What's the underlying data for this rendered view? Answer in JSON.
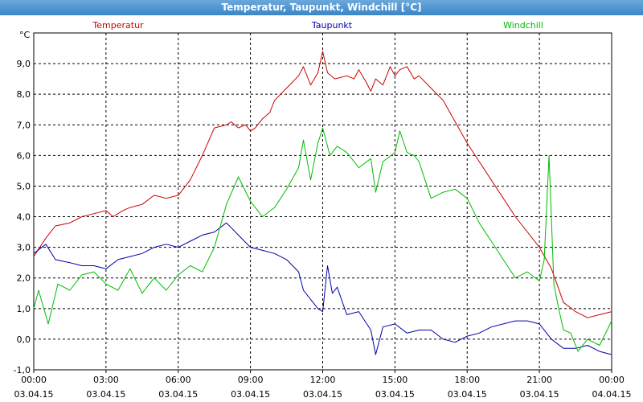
{
  "window": {
    "title": "Temperatur, Taupunkt, Windchill [°C]"
  },
  "colors": {
    "temperature": "#cc0000",
    "dewpoint": "#0000aa",
    "windchill": "#00bb00",
    "grid": "#000000"
  },
  "chart_data": {
    "type": "line",
    "title": "Temperatur, Taupunkt, Windchill [°C]",
    "ylabel": "°C",
    "ylim": [
      -1.0,
      10.0
    ],
    "xlim_hours": [
      0,
      24
    ],
    "y_ticks": [
      "-1,0",
      "0,0",
      "1,0",
      "2,0",
      "3,0",
      "4,0",
      "5,0",
      "6,0",
      "7,0",
      "8,0",
      "9,0"
    ],
    "x_ticks": [
      {
        "time": "00:00",
        "date": "03.04.15"
      },
      {
        "time": "03:00",
        "date": "03.04.15"
      },
      {
        "time": "06:00",
        "date": "03.04.15"
      },
      {
        "time": "09:00",
        "date": "03.04.15"
      },
      {
        "time": "12:00",
        "date": "03.04.15"
      },
      {
        "time": "15:00",
        "date": "03.04.15"
      },
      {
        "time": "18:00",
        "date": "03.04.15"
      },
      {
        "time": "21:00",
        "date": "03.04.15"
      },
      {
        "time": "00:00",
        "date": "04.04.15"
      }
    ],
    "grid": true,
    "legend": "top",
    "series": [
      {
        "name": "Temperatur",
        "color": "#cc0000",
        "x": [
          0,
          0.5,
          0.9,
          1.5,
          2,
          2.5,
          3,
          3.3,
          3.7,
          4,
          4.5,
          5,
          5.5,
          6,
          6.5,
          7,
          7.5,
          8,
          8.2,
          8.5,
          8.8,
          9,
          9.2,
          9.5,
          9.8,
          10,
          10.5,
          11,
          11.2,
          11.5,
          11.8,
          12,
          12.2,
          12.5,
          13,
          13.3,
          13.5,
          13.8,
          14,
          14.2,
          14.5,
          14.8,
          15,
          15.2,
          15.5,
          15.8,
          16,
          16.5,
          17,
          17.5,
          18,
          19,
          20,
          21,
          21.5,
          22,
          22.5,
          23,
          23.5,
          24
        ],
        "y": [
          2.7,
          3.3,
          3.7,
          3.8,
          4.0,
          4.1,
          4.2,
          4.0,
          4.2,
          4.3,
          4.4,
          4.7,
          4.6,
          4.7,
          5.2,
          6.0,
          6.9,
          7.0,
          7.1,
          6.9,
          7.0,
          6.8,
          6.9,
          7.2,
          7.4,
          7.8,
          8.2,
          8.6,
          8.9,
          8.3,
          8.7,
          9.4,
          8.7,
          8.5,
          8.6,
          8.5,
          8.8,
          8.4,
          8.1,
          8.5,
          8.3,
          8.9,
          8.6,
          8.8,
          8.9,
          8.5,
          8.6,
          8.2,
          7.8,
          7.1,
          6.4,
          5.2,
          4.0,
          3.0,
          2.3,
          1.2,
          0.9,
          0.7,
          0.8,
          0.9
        ]
      },
      {
        "name": "Taupunkt",
        "color": "#0000aa",
        "x": [
          0,
          0.5,
          0.9,
          1.5,
          2,
          2.5,
          3,
          3.5,
          4,
          4.5,
          5,
          5.5,
          6,
          6.5,
          7,
          7.5,
          8,
          8.5,
          9,
          9.5,
          10,
          10.5,
          11,
          11.2,
          11.5,
          11.8,
          12,
          12.2,
          12.4,
          12.6,
          13,
          13.5,
          14,
          14.2,
          14.5,
          15,
          15.5,
          16,
          16.5,
          17,
          17.5,
          18,
          18.5,
          19,
          19.5,
          20,
          20.5,
          21,
          21.5,
          22,
          22.5,
          23,
          23.5,
          24
        ],
        "y": [
          2.8,
          3.1,
          2.6,
          2.5,
          2.4,
          2.4,
          2.3,
          2.6,
          2.7,
          2.8,
          3.0,
          3.1,
          3.0,
          3.2,
          3.4,
          3.5,
          3.8,
          3.4,
          3.0,
          2.9,
          2.8,
          2.6,
          2.2,
          1.6,
          1.3,
          1.0,
          0.9,
          2.4,
          1.5,
          1.7,
          0.8,
          0.9,
          0.3,
          -0.5,
          0.4,
          0.5,
          0.2,
          0.3,
          0.3,
          0.0,
          -0.1,
          0.1,
          0.2,
          0.4,
          0.5,
          0.6,
          0.6,
          0.5,
          0.0,
          -0.3,
          -0.3,
          -0.2,
          -0.4,
          -0.5
        ]
      },
      {
        "name": "Windchill",
        "color": "#00bb00",
        "x": [
          0,
          0.2,
          0.6,
          1,
          1.5,
          2,
          2.5,
          3,
          3.5,
          4,
          4.5,
          5,
          5.5,
          6,
          6.5,
          7,
          7.5,
          8,
          8.5,
          9,
          9.5,
          10,
          10.5,
          11,
          11.2,
          11.5,
          11.8,
          12,
          12.3,
          12.6,
          13,
          13.5,
          14,
          14.2,
          14.5,
          15,
          15.2,
          15.5,
          15.8,
          16,
          16.5,
          17,
          17.5,
          18,
          18.5,
          19,
          19.5,
          20,
          20.5,
          21,
          21.2,
          21.4,
          21.6,
          21.8,
          22,
          22.3,
          22.6,
          23,
          23.5,
          24
        ],
        "y": [
          1.0,
          1.6,
          0.5,
          1.8,
          1.6,
          2.1,
          2.2,
          1.8,
          1.6,
          2.3,
          1.5,
          2.0,
          1.6,
          2.1,
          2.4,
          2.2,
          3.0,
          4.4,
          5.3,
          4.5,
          4.0,
          4.3,
          4.9,
          5.6,
          6.5,
          5.2,
          6.4,
          6.9,
          6.0,
          6.3,
          6.1,
          5.6,
          5.9,
          4.8,
          5.8,
          6.1,
          6.8,
          6.1,
          6.0,
          5.8,
          4.6,
          4.8,
          4.9,
          4.6,
          3.8,
          3.2,
          2.6,
          2.0,
          2.2,
          1.9,
          2.6,
          6.0,
          1.8,
          1.0,
          0.3,
          0.2,
          -0.4,
          0.0,
          -0.2,
          0.6
        ]
      }
    ]
  }
}
